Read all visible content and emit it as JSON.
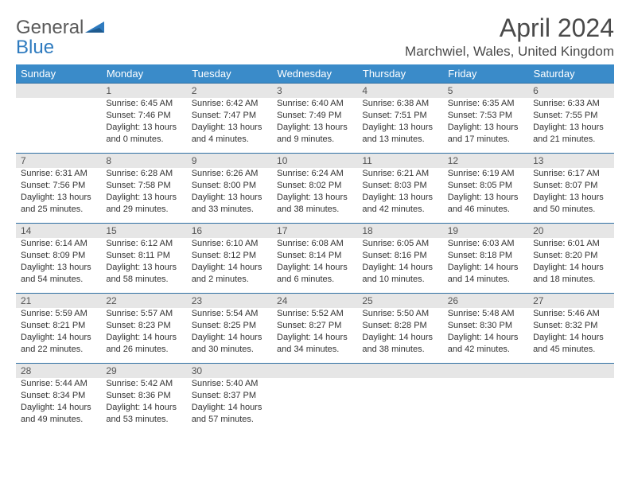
{
  "logo": {
    "word1": "General",
    "word2": "Blue"
  },
  "title": "April 2024",
  "location": "Marchwiel, Wales, United Kingdom",
  "day_headers": [
    "Sunday",
    "Monday",
    "Tuesday",
    "Wednesday",
    "Thursday",
    "Friday",
    "Saturday"
  ],
  "colors": {
    "header_bg": "#3a8bc9",
    "header_text": "#ffffff",
    "daynum_bg": "#e6e6e6",
    "row_border": "#2f6fa3",
    "body_text": "#333333",
    "logo_gray": "#5a5a5a",
    "logo_blue": "#2f7bbf",
    "title_color": "#4a4a4a"
  },
  "typography": {
    "title_fontsize": 32,
    "location_fontsize": 17,
    "dayheader_fontsize": 13,
    "daynum_fontsize": 12,
    "cell_fontsize": 11
  },
  "weeks": [
    [
      null,
      {
        "n": "1",
        "sr": "Sunrise: 6:45 AM",
        "ss": "Sunset: 7:46 PM",
        "d1": "Daylight: 13 hours",
        "d2": "and 0 minutes."
      },
      {
        "n": "2",
        "sr": "Sunrise: 6:42 AM",
        "ss": "Sunset: 7:47 PM",
        "d1": "Daylight: 13 hours",
        "d2": "and 4 minutes."
      },
      {
        "n": "3",
        "sr": "Sunrise: 6:40 AM",
        "ss": "Sunset: 7:49 PM",
        "d1": "Daylight: 13 hours",
        "d2": "and 9 minutes."
      },
      {
        "n": "4",
        "sr": "Sunrise: 6:38 AM",
        "ss": "Sunset: 7:51 PM",
        "d1": "Daylight: 13 hours",
        "d2": "and 13 minutes."
      },
      {
        "n": "5",
        "sr": "Sunrise: 6:35 AM",
        "ss": "Sunset: 7:53 PM",
        "d1": "Daylight: 13 hours",
        "d2": "and 17 minutes."
      },
      {
        "n": "6",
        "sr": "Sunrise: 6:33 AM",
        "ss": "Sunset: 7:55 PM",
        "d1": "Daylight: 13 hours",
        "d2": "and 21 minutes."
      }
    ],
    [
      {
        "n": "7",
        "sr": "Sunrise: 6:31 AM",
        "ss": "Sunset: 7:56 PM",
        "d1": "Daylight: 13 hours",
        "d2": "and 25 minutes."
      },
      {
        "n": "8",
        "sr": "Sunrise: 6:28 AM",
        "ss": "Sunset: 7:58 PM",
        "d1": "Daylight: 13 hours",
        "d2": "and 29 minutes."
      },
      {
        "n": "9",
        "sr": "Sunrise: 6:26 AM",
        "ss": "Sunset: 8:00 PM",
        "d1": "Daylight: 13 hours",
        "d2": "and 33 minutes."
      },
      {
        "n": "10",
        "sr": "Sunrise: 6:24 AM",
        "ss": "Sunset: 8:02 PM",
        "d1": "Daylight: 13 hours",
        "d2": "and 38 minutes."
      },
      {
        "n": "11",
        "sr": "Sunrise: 6:21 AM",
        "ss": "Sunset: 8:03 PM",
        "d1": "Daylight: 13 hours",
        "d2": "and 42 minutes."
      },
      {
        "n": "12",
        "sr": "Sunrise: 6:19 AM",
        "ss": "Sunset: 8:05 PM",
        "d1": "Daylight: 13 hours",
        "d2": "and 46 minutes."
      },
      {
        "n": "13",
        "sr": "Sunrise: 6:17 AM",
        "ss": "Sunset: 8:07 PM",
        "d1": "Daylight: 13 hours",
        "d2": "and 50 minutes."
      }
    ],
    [
      {
        "n": "14",
        "sr": "Sunrise: 6:14 AM",
        "ss": "Sunset: 8:09 PM",
        "d1": "Daylight: 13 hours",
        "d2": "and 54 minutes."
      },
      {
        "n": "15",
        "sr": "Sunrise: 6:12 AM",
        "ss": "Sunset: 8:11 PM",
        "d1": "Daylight: 13 hours",
        "d2": "and 58 minutes."
      },
      {
        "n": "16",
        "sr": "Sunrise: 6:10 AM",
        "ss": "Sunset: 8:12 PM",
        "d1": "Daylight: 14 hours",
        "d2": "and 2 minutes."
      },
      {
        "n": "17",
        "sr": "Sunrise: 6:08 AM",
        "ss": "Sunset: 8:14 PM",
        "d1": "Daylight: 14 hours",
        "d2": "and 6 minutes."
      },
      {
        "n": "18",
        "sr": "Sunrise: 6:05 AM",
        "ss": "Sunset: 8:16 PM",
        "d1": "Daylight: 14 hours",
        "d2": "and 10 minutes."
      },
      {
        "n": "19",
        "sr": "Sunrise: 6:03 AM",
        "ss": "Sunset: 8:18 PM",
        "d1": "Daylight: 14 hours",
        "d2": "and 14 minutes."
      },
      {
        "n": "20",
        "sr": "Sunrise: 6:01 AM",
        "ss": "Sunset: 8:20 PM",
        "d1": "Daylight: 14 hours",
        "d2": "and 18 minutes."
      }
    ],
    [
      {
        "n": "21",
        "sr": "Sunrise: 5:59 AM",
        "ss": "Sunset: 8:21 PM",
        "d1": "Daylight: 14 hours",
        "d2": "and 22 minutes."
      },
      {
        "n": "22",
        "sr": "Sunrise: 5:57 AM",
        "ss": "Sunset: 8:23 PM",
        "d1": "Daylight: 14 hours",
        "d2": "and 26 minutes."
      },
      {
        "n": "23",
        "sr": "Sunrise: 5:54 AM",
        "ss": "Sunset: 8:25 PM",
        "d1": "Daylight: 14 hours",
        "d2": "and 30 minutes."
      },
      {
        "n": "24",
        "sr": "Sunrise: 5:52 AM",
        "ss": "Sunset: 8:27 PM",
        "d1": "Daylight: 14 hours",
        "d2": "and 34 minutes."
      },
      {
        "n": "25",
        "sr": "Sunrise: 5:50 AM",
        "ss": "Sunset: 8:28 PM",
        "d1": "Daylight: 14 hours",
        "d2": "and 38 minutes."
      },
      {
        "n": "26",
        "sr": "Sunrise: 5:48 AM",
        "ss": "Sunset: 8:30 PM",
        "d1": "Daylight: 14 hours",
        "d2": "and 42 minutes."
      },
      {
        "n": "27",
        "sr": "Sunrise: 5:46 AM",
        "ss": "Sunset: 8:32 PM",
        "d1": "Daylight: 14 hours",
        "d2": "and 45 minutes."
      }
    ],
    [
      {
        "n": "28",
        "sr": "Sunrise: 5:44 AM",
        "ss": "Sunset: 8:34 PM",
        "d1": "Daylight: 14 hours",
        "d2": "and 49 minutes."
      },
      {
        "n": "29",
        "sr": "Sunrise: 5:42 AM",
        "ss": "Sunset: 8:36 PM",
        "d1": "Daylight: 14 hours",
        "d2": "and 53 minutes."
      },
      {
        "n": "30",
        "sr": "Sunrise: 5:40 AM",
        "ss": "Sunset: 8:37 PM",
        "d1": "Daylight: 14 hours",
        "d2": "and 57 minutes."
      },
      null,
      null,
      null,
      null
    ]
  ]
}
